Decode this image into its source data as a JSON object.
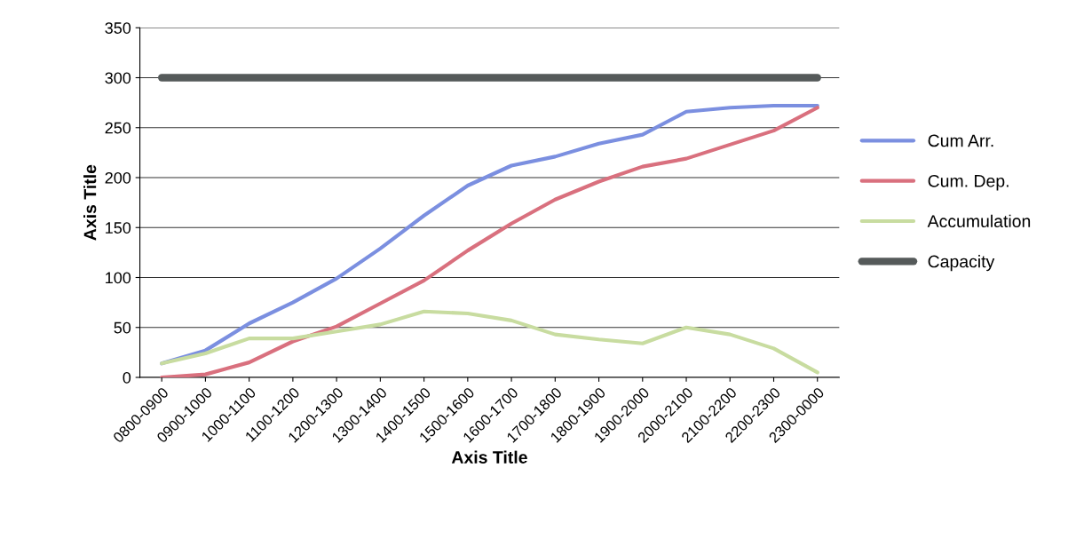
{
  "chart_data": {
    "type": "line",
    "xlabel": "Axis Title",
    "ylabel": "Axis Title",
    "categories": [
      "0800-0900",
      "0900-1000",
      "1000-1100",
      "1100-1200",
      "1200-1300",
      "1300-1400",
      "1400-1500",
      "1500-1600",
      "1600-1700",
      "1700-1800",
      "1800-1900",
      "1900-2000",
      "2000-2100",
      "2100-2200",
      "2200-2300",
      "2300-0000"
    ],
    "series": [
      {
        "name": "Cum Arr.",
        "color": "#7b8fe0",
        "values": [
          14,
          27,
          54,
          75,
          99,
          129,
          162,
          192,
          212,
          221,
          234,
          243,
          266,
          270,
          272,
          272
        ]
      },
      {
        "name": "Cum. Dep.",
        "color": "#d9707e",
        "values": [
          0,
          3,
          15,
          36,
          51,
          74,
          97,
          127,
          154,
          178,
          196,
          211,
          219,
          233,
          247,
          270
        ]
      },
      {
        "name": "Accumulation",
        "color": "#c8dca0",
        "values": [
          14,
          24,
          39,
          39,
          46,
          53,
          66,
          64,
          57,
          43,
          38,
          34,
          50,
          43,
          29,
          5
        ]
      },
      {
        "name": "Capacity",
        "color": "#555a5a",
        "values": [
          300,
          300,
          300,
          300,
          300,
          300,
          300,
          300,
          300,
          300,
          300,
          300,
          300,
          300,
          300,
          300
        ]
      }
    ],
    "ylim": [
      0,
      350
    ],
    "yticks": [
      0,
      50,
      100,
      150,
      200,
      250,
      300,
      350
    ],
    "grid": "y",
    "legend": "right",
    "marker": "none",
    "line_style": "solid"
  }
}
